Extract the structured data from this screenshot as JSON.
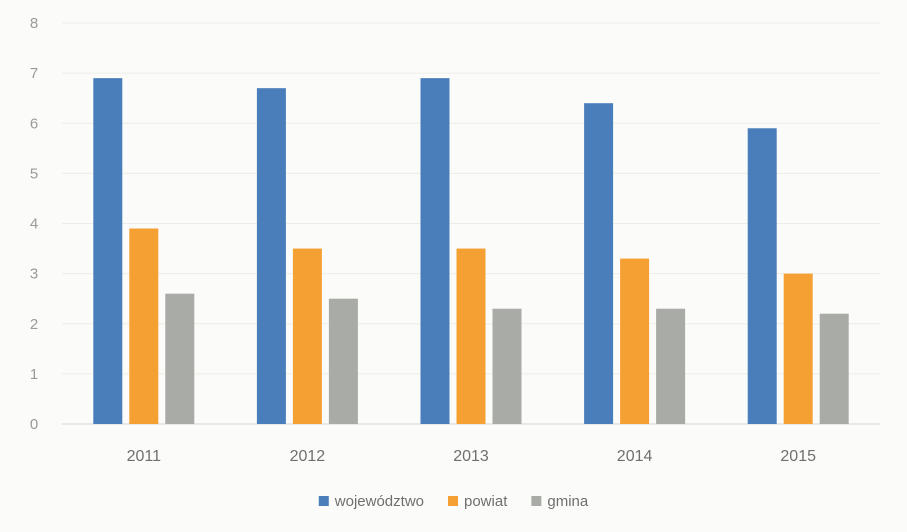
{
  "chart_data": {
    "type": "bar",
    "title": "",
    "xlabel": "",
    "ylabel": "",
    "ylim": [
      0,
      8
    ],
    "yticks": [
      "0",
      "1",
      "2",
      "3",
      "4",
      "5",
      "6",
      "7",
      "8"
    ],
    "grid": true,
    "legend_position": "bottom-center",
    "categories": [
      "2011",
      "2012",
      "2013",
      "2014",
      "2015"
    ],
    "series": [
      {
        "name": "województwo",
        "color": "#4a7ebb",
        "values": [
          6.9,
          6.7,
          6.9,
          6.4,
          5.9
        ]
      },
      {
        "name": "powiat",
        "color": "#f5a033",
        "values": [
          3.9,
          3.5,
          3.5,
          3.3,
          3.0
        ]
      },
      {
        "name": "gmina",
        "color": "#a9aca6",
        "values": [
          2.6,
          2.5,
          2.3,
          2.3,
          2.2
        ]
      }
    ]
  }
}
